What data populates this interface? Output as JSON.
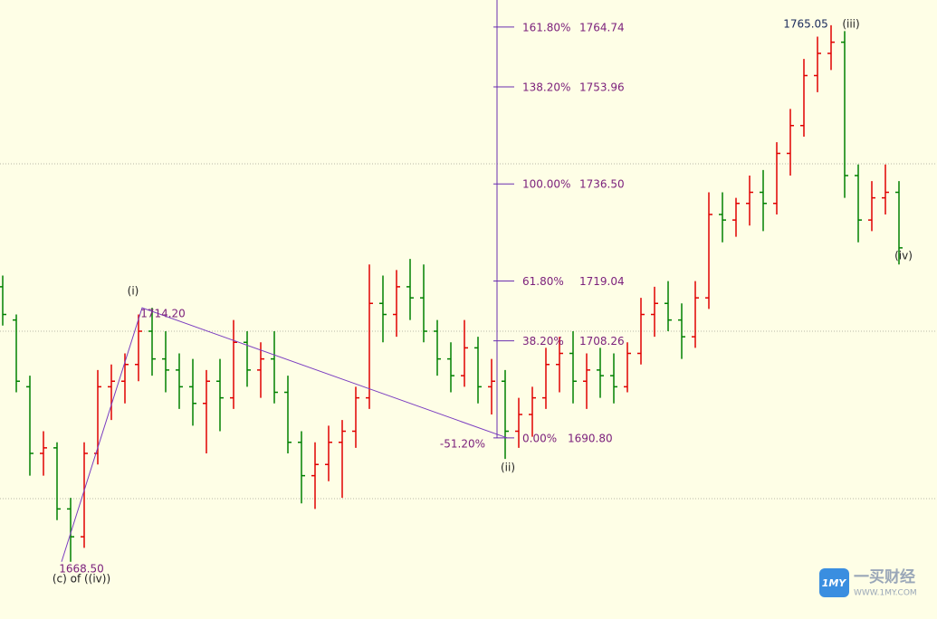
{
  "chart_data": {
    "type": "ohlc",
    "ylim": [
      1658.2,
      1769.6
    ],
    "up_color": "#e00000",
    "down_color": "#008000",
    "bars": [
      [
        1718,
        1720,
        1711,
        1713
      ],
      [
        1712,
        1713,
        1699,
        1701
      ],
      [
        1700,
        1702,
        1684,
        1688
      ],
      [
        1688,
        1692,
        1684,
        1689
      ],
      [
        1689,
        1690,
        1676,
        1678
      ],
      [
        1678,
        1680,
        1668.5,
        1673
      ],
      [
        1673,
        1690,
        1671,
        1688
      ],
      [
        1688,
        1703,
        1686,
        1700
      ],
      [
        1700,
        1704,
        1694,
        1701
      ],
      [
        1701,
        1706,
        1697,
        1704
      ],
      [
        1704,
        1713,
        1701,
        1710
      ],
      [
        1710,
        1714.2,
        1702,
        1705
      ],
      [
        1705,
        1710,
        1699,
        1703
      ],
      [
        1703,
        1706,
        1696,
        1700
      ],
      [
        1700,
        1705,
        1693,
        1697
      ],
      [
        1697,
        1703,
        1688,
        1701
      ],
      [
        1701,
        1705,
        1692,
        1698
      ],
      [
        1698,
        1712,
        1696,
        1708
      ],
      [
        1708,
        1710,
        1700,
        1703
      ],
      [
        1703,
        1708,
        1698,
        1705
      ],
      [
        1705,
        1710,
        1697,
        1699
      ],
      [
        1699,
        1702,
        1688,
        1690
      ],
      [
        1690,
        1692,
        1679,
        1684
      ],
      [
        1684,
        1690,
        1678,
        1686
      ],
      [
        1686,
        1693,
        1683,
        1690
      ],
      [
        1690,
        1694,
        1680,
        1692
      ],
      [
        1692,
        1700,
        1689,
        1698
      ],
      [
        1698,
        1722,
        1696,
        1715
      ],
      [
        1715,
        1720,
        1708,
        1713
      ],
      [
        1713,
        1721,
        1709,
        1718
      ],
      [
        1718,
        1723,
        1712,
        1716
      ],
      [
        1716,
        1722,
        1708,
        1710
      ],
      [
        1710,
        1712,
        1702,
        1705
      ],
      [
        1705,
        1708,
        1699,
        1702
      ],
      [
        1702,
        1712,
        1700,
        1707
      ],
      [
        1707,
        1709,
        1697,
        1700
      ],
      [
        1700,
        1705,
        1695,
        1701
      ],
      [
        1701,
        1703,
        1687,
        1692
      ],
      [
        1692,
        1698,
        1689,
        1695
      ],
      [
        1695,
        1700,
        1691,
        1698
      ],
      [
        1698,
        1707,
        1696,
        1704
      ],
      [
        1704,
        1709,
        1699,
        1706
      ],
      [
        1706,
        1710,
        1697,
        1701
      ],
      [
        1701,
        1706,
        1696,
        1703
      ],
      [
        1703,
        1707,
        1698,
        1702
      ],
      [
        1702,
        1706,
        1697,
        1700
      ],
      [
        1700,
        1708,
        1699,
        1706
      ],
      [
        1706,
        1716,
        1704,
        1713
      ],
      [
        1713,
        1718,
        1709,
        1715
      ],
      [
        1715,
        1719,
        1710,
        1712
      ],
      [
        1712,
        1715,
        1705,
        1709
      ],
      [
        1709,
        1719,
        1707,
        1716
      ],
      [
        1716,
        1735,
        1714,
        1731
      ],
      [
        1731,
        1735,
        1726,
        1730
      ],
      [
        1730,
        1734,
        1727,
        1733
      ],
      [
        1733,
        1738,
        1729,
        1735
      ],
      [
        1735,
        1739,
        1728,
        1733
      ],
      [
        1733,
        1744,
        1731,
        1742
      ],
      [
        1742,
        1750,
        1738,
        1747
      ],
      [
        1747,
        1759,
        1745,
        1756
      ],
      [
        1756,
        1763,
        1753,
        1760
      ],
      [
        1760,
        1765.05,
        1757,
        1762
      ],
      [
        1762,
        1764,
        1734,
        1738
      ],
      [
        1738,
        1740,
        1726,
        1730
      ],
      [
        1730,
        1737,
        1728,
        1734
      ],
      [
        1734,
        1740,
        1731,
        1735
      ],
      [
        1735,
        1737,
        1722,
        1725
      ]
    ],
    "waves": [
      {
        "label": "(c) of ((iv))",
        "value": 1668.5,
        "price_label": "1668.50"
      },
      {
        "label": "(i)",
        "value": 1714.2,
        "price_label": "1714.20"
      },
      {
        "label": "(ii)",
        "value": 1690.8
      },
      {
        "label": "(iii)",
        "value": 1765.05,
        "price_label": "1765.05"
      },
      {
        "label": "(iv)"
      }
    ],
    "wave_color": "#7a3cc0",
    "fib": {
      "color": "#7b1f7b",
      "line_color": "#6a2fb0",
      "extension_label": "-51.20%",
      "levels": [
        {
          "pct": "161.80%",
          "value": 1764.74,
          "label": "1764.74"
        },
        {
          "pct": "138.20%",
          "value": 1753.96,
          "label": "1753.96"
        },
        {
          "pct": "100.00%",
          "value": 1736.5,
          "label": "1736.50"
        },
        {
          "pct": "61.80%",
          "value": 1719.04,
          "label": "1719.04"
        },
        {
          "pct": "38.20%",
          "value": 1708.26,
          "label": "1708.26"
        },
        {
          "pct": "0.00%",
          "value": 1690.8,
          "label": "1690.80"
        }
      ]
    }
  },
  "watermark": {
    "logo": "1MY",
    "name": "一买财经",
    "url": "WWW.1MY.COM"
  }
}
